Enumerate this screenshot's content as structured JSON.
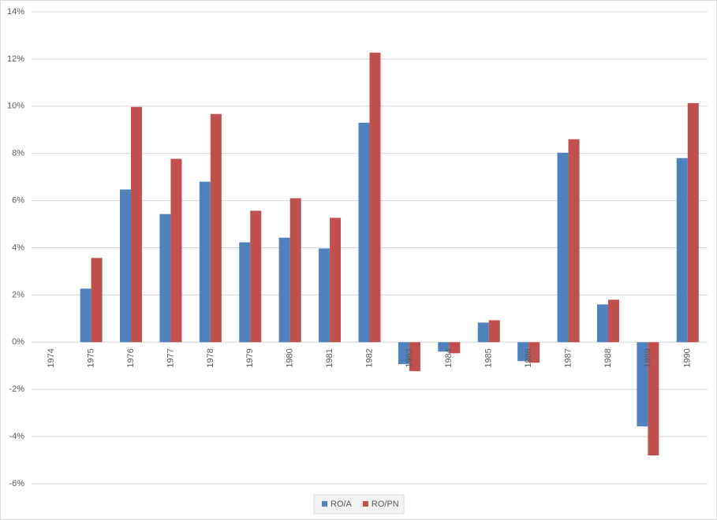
{
  "chart_data": {
    "type": "bar",
    "categories": [
      "1974",
      "1975",
      "1976",
      "1977",
      "1978",
      "1979",
      "1980",
      "1981",
      "1982",
      "1983",
      "1984",
      "1985",
      "1986",
      "1987",
      "1988",
      "1989",
      "1990"
    ],
    "series": [
      {
        "name": "RO/A",
        "color": "#4f81bd",
        "values": [
          null,
          2.27,
          6.47,
          5.43,
          6.8,
          4.23,
          4.43,
          3.97,
          9.3,
          -0.93,
          -0.4,
          0.83,
          -0.8,
          8.03,
          1.6,
          -3.57,
          7.8
        ]
      },
      {
        "name": "RO/PN",
        "color": "#c0504d",
        "values": [
          null,
          3.57,
          9.97,
          7.77,
          9.67,
          5.57,
          6.1,
          5.27,
          12.27,
          -1.23,
          -0.47,
          0.93,
          -0.87,
          8.6,
          1.8,
          -4.8,
          10.13
        ]
      }
    ],
    "ylim": [
      -6,
      14
    ],
    "yticks": [
      {
        "value": -6,
        "label": "-6%"
      },
      {
        "value": -4,
        "label": "-4%"
      },
      {
        "value": -2,
        "label": "-2%"
      },
      {
        "value": 0,
        "label": "0%"
      },
      {
        "value": 2,
        "label": "2%"
      },
      {
        "value": 4,
        "label": "4%"
      },
      {
        "value": 6,
        "label": "6%"
      },
      {
        "value": 8,
        "label": "8%"
      },
      {
        "value": 10,
        "label": "10%"
      },
      {
        "value": 12,
        "label": "12%"
      },
      {
        "value": 14,
        "label": "14%"
      }
    ],
    "grid": true,
    "legend": "bottom"
  }
}
